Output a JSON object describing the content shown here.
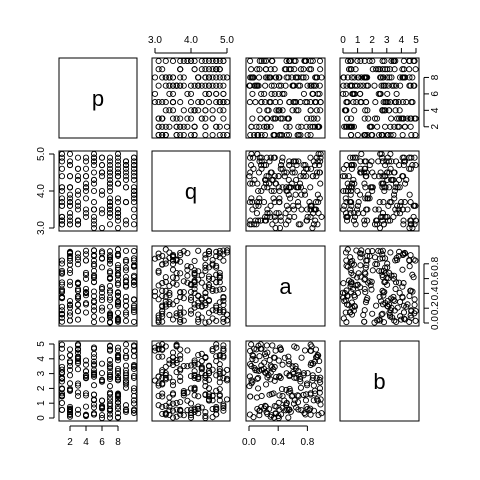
{
  "chart_data": {
    "type": "scatter",
    "kind": "scatterplot-matrix",
    "title": "",
    "variables": [
      {
        "name": "p",
        "range": [
          1,
          10
        ],
        "ticks": [
          2,
          4,
          6,
          8
        ],
        "tick_labels": [
          "2",
          "4",
          "6",
          "8"
        ],
        "discrete_values": [
          1,
          2,
          3,
          4,
          5,
          6,
          7,
          8,
          9,
          10
        ]
      },
      {
        "name": "q",
        "range": [
          3.0,
          5.0
        ],
        "ticks": [
          3.0,
          4.0,
          5.0
        ],
        "tick_labels": [
          "3.0",
          "4.0",
          "5.0"
        ],
        "discrete_values": [
          3.0,
          3.1,
          3.2,
          3.3,
          3.4,
          3.5,
          3.6,
          3.7,
          3.8,
          3.9,
          4.0,
          4.1,
          4.2,
          4.3,
          4.4,
          4.5,
          4.6,
          4.7,
          4.8,
          4.9,
          5.0
        ]
      },
      {
        "name": "a",
        "range": [
          0.0,
          1.0
        ],
        "ticks": [
          0.0,
          0.4,
          0.8
        ],
        "tick_labels": [
          "0.0",
          "0.4",
          "0.8"
        ],
        "bottom_ticks": [
          0.0,
          0.4,
          0.8
        ],
        "bottom_tick_labels": [
          "0.0",
          "0.4",
          "0.8"
        ],
        "right_ticks": [
          0.0,
          0.2,
          0.4,
          0.6,
          0.8
        ],
        "right_tick_labels": [
          "0.0",
          "0.2",
          "0.4",
          "0.6",
          "0.8"
        ]
      },
      {
        "name": "b",
        "range": [
          0,
          5
        ],
        "ticks": [
          0,
          1,
          2,
          3,
          4,
          5
        ],
        "tick_labels": [
          "0",
          "1",
          "2",
          "3",
          "4",
          "5"
        ]
      }
    ],
    "n_points": 200,
    "points": {
      "seed": 17
    }
  }
}
